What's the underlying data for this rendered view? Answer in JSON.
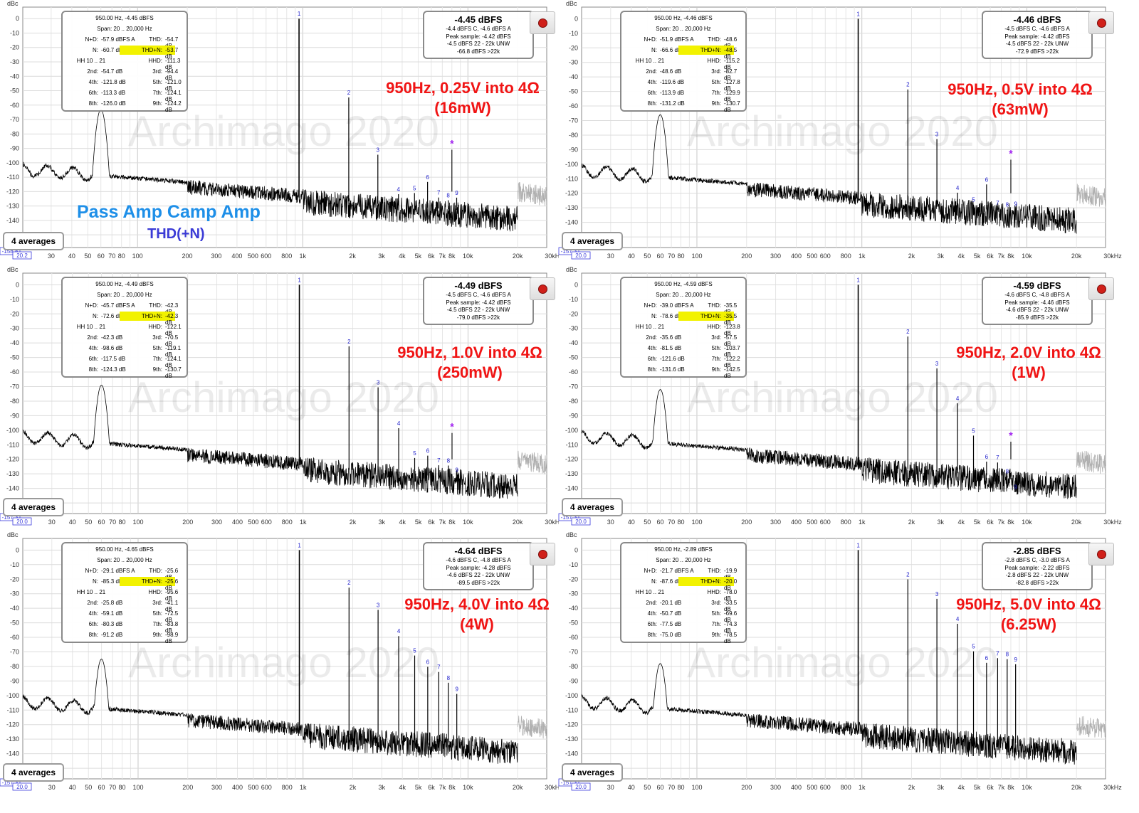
{
  "chart_data": [
    {
      "type": "line",
      "title": "950Hz, 0.25V into 4Ω",
      "subtitle": "(16mW)",
      "ylabel": "dBc",
      "ylim": [
        -158.8,
        8
      ],
      "xlim": [
        20.2,
        30000
      ],
      "x_scale": "log",
      "bottom_readout": "-158.8",
      "left_readout": "20.2",
      "averages_label": "4 averages",
      "watermark": "Archimago 2020",
      "info": {
        "header1": "950.00 Hz, -4.45 dBFS",
        "header2": "Span: 20 .. 20,000 Hz",
        "rows": [
          [
            [
              "N+D:",
              "-57.9 dBFS A"
            ],
            [
              "THD:",
              "-54.7 dB"
            ]
          ],
          [
            [
              "N:",
              "-60.7 dB"
            ],
            [
              "THD+N:",
              "-53.7 dB"
            ]
          ],
          [
            [
              "HH 10 .. 21",
              ""
            ],
            [
              "HHD:",
              "-111.3 dB"
            ]
          ],
          [
            [
              "2nd:",
              "-54.7 dB"
            ],
            [
              "3rd:",
              "-94.4 dB"
            ]
          ],
          [
            [
              "4th:",
              "-121.8 dB"
            ],
            [
              "5th:",
              "-121.0 dB"
            ]
          ],
          [
            [
              "6th:",
              "-113.3 dB"
            ],
            [
              "7th:",
              "-124.1 dB"
            ]
          ],
          [
            [
              "8th:",
              "-126.0 dB"
            ],
            [
              "9th:",
              "-124.2 dB"
            ]
          ]
        ]
      },
      "level": {
        "big": "-4.45 dBFS",
        "lines": [
          "-4.4 dBFS C, -4.6 dBFS A",
          "Peak sample: -4.42 dBFS",
          "-4.5 dBFS 22 - 22k UNW",
          "-66.8 dBFS >22k"
        ]
      },
      "harmonics": [
        {
          "n": "1",
          "x": 950,
          "y": 0
        },
        {
          "n": "2",
          "x": 1900,
          "y": -54.7
        },
        {
          "n": "3",
          "x": 2850,
          "y": -94.4
        },
        {
          "n": "4",
          "x": 3800,
          "y": -121.8
        },
        {
          "n": "5",
          "x": 4750,
          "y": -121.0
        },
        {
          "n": "6",
          "x": 5700,
          "y": -113.3
        },
        {
          "n": "7",
          "x": 6650,
          "y": -124.1
        },
        {
          "n": "8",
          "x": 7600,
          "y": -126.0
        },
        {
          "n": "9",
          "x": 8550,
          "y": -124.2
        }
      ],
      "star": {
        "x": 8000,
        "y": -86
      }
    },
    {
      "type": "line",
      "title": "950Hz, 0.5V into 4Ω",
      "subtitle": "(63mW)",
      "ylabel": "dBc",
      "ylim": [
        -157.3,
        8
      ],
      "xlim": [
        20.0,
        30000
      ],
      "x_scale": "log",
      "bottom_readout": "-157.3",
      "left_readout": "20.0",
      "averages_label": "4 averages",
      "watermark": "Archimago 2020",
      "info": {
        "header1": "950.00 Hz, -4.46 dBFS",
        "header2": "Span: 20 .. 20,000 Hz",
        "rows": [
          [
            [
              "N+D:",
              "-51.9 dBFS A"
            ],
            [
              "THD:",
              "-48.6 dB"
            ]
          ],
          [
            [
              "N:",
              "-66.6 dB"
            ],
            [
              "THD+N:",
              "-48.5 dB"
            ]
          ],
          [
            [
              "HH 10 .. 21",
              ""
            ],
            [
              "HHD:",
              "-115.2 dB"
            ]
          ],
          [
            [
              "2nd:",
              "-48.6 dB"
            ],
            [
              "3rd:",
              "-82.7 dB"
            ]
          ],
          [
            [
              "4th:",
              "-119.6 dB"
            ],
            [
              "5th:",
              "-127.8 dB"
            ]
          ],
          [
            [
              "6th:",
              "-113.9 dB"
            ],
            [
              "7th:",
              "-129.9 dB"
            ]
          ],
          [
            [
              "8th:",
              "-131.2 dB"
            ],
            [
              "9th:",
              "-130.7 dB"
            ]
          ]
        ]
      },
      "level": {
        "big": "-4.46 dBFS",
        "lines": [
          "-4.5 dBFS C, -4.6 dBFS A",
          "Peak sample: -4.42 dBFS",
          "-4.5 dBFS 22 - 22k UNW",
          "-72.9 dBFS >22k"
        ]
      },
      "harmonics": [
        {
          "n": "1",
          "x": 950,
          "y": 0
        },
        {
          "n": "2",
          "x": 1900,
          "y": -48.6
        },
        {
          "n": "3",
          "x": 2850,
          "y": -82.7
        },
        {
          "n": "4",
          "x": 3800,
          "y": -119.6
        },
        {
          "n": "5",
          "x": 4750,
          "y": -127.8
        },
        {
          "n": "6",
          "x": 5700,
          "y": -113.9
        },
        {
          "n": "7",
          "x": 6650,
          "y": -129.9
        },
        {
          "n": "8",
          "x": 7600,
          "y": -131.2
        },
        {
          "n": "9",
          "x": 8550,
          "y": -130.7
        }
      ],
      "star": {
        "x": 8000,
        "y": -92
      }
    },
    {
      "type": "line",
      "title": "950Hz, 1.0V into 4Ω",
      "subtitle": "(250mW)",
      "ylabel": "dBc",
      "ylim": [
        -157.3,
        8
      ],
      "xlim": [
        20.0,
        30000
      ],
      "x_scale": "log",
      "bottom_readout": "-157.3",
      "left_readout": "20.0",
      "averages_label": "4 averages",
      "watermark": "Archimago 2020",
      "info": {
        "header1": "950.00 Hz, -4.49 dBFS",
        "header2": "Span: 20 .. 20,000 Hz",
        "rows": [
          [
            [
              "N+D:",
              "-45.7 dBFS A"
            ],
            [
              "THD:",
              "-42.3 dB"
            ]
          ],
          [
            [
              "N:",
              "-72.6 dB"
            ],
            [
              "THD+N:",
              "-42.3 dB"
            ]
          ],
          [
            [
              "HH 10 .. 21",
              ""
            ],
            [
              "HHD:",
              "-122.1 dB"
            ]
          ],
          [
            [
              "2nd:",
              "-42.3 dB"
            ],
            [
              "3rd:",
              "-70.5 dB"
            ]
          ],
          [
            [
              "4th:",
              "-98.6 dB"
            ],
            [
              "5th:",
              "-119.1 dB"
            ]
          ],
          [
            [
              "6th:",
              "-117.5 dB"
            ],
            [
              "7th:",
              "-124.1 dB"
            ]
          ],
          [
            [
              "8th:",
              "-124.3 dB"
            ],
            [
              "9th:",
              "-130.7 dB"
            ]
          ]
        ]
      },
      "level": {
        "big": "-4.49 dBFS",
        "lines": [
          "-4.5 dBFS C, -4.6 dBFS A",
          "Peak sample: -4.42 dBFS",
          "-4.5 dBFS 22 - 22k UNW",
          "-79.0 dBFS >22k"
        ]
      },
      "harmonics": [
        {
          "n": "1",
          "x": 950,
          "y": 0
        },
        {
          "n": "2",
          "x": 1900,
          "y": -42.3
        },
        {
          "n": "3",
          "x": 2850,
          "y": -70.5
        },
        {
          "n": "4",
          "x": 3800,
          "y": -98.6
        },
        {
          "n": "5",
          "x": 4750,
          "y": -119.1
        },
        {
          "n": "6",
          "x": 5700,
          "y": -117.5
        },
        {
          "n": "7",
          "x": 6650,
          "y": -124.1
        },
        {
          "n": "8",
          "x": 7600,
          "y": -124.3
        },
        {
          "n": "9",
          "x": 8550,
          "y": -130.7
        }
      ],
      "star": {
        "x": 8000,
        "y": -97
      }
    },
    {
      "type": "line",
      "title": "950Hz, 2.0V into 4Ω",
      "subtitle": "(1W)",
      "ylabel": "dBc",
      "ylim": [
        -157.3,
        8
      ],
      "xlim": [
        20.0,
        30000
      ],
      "x_scale": "log",
      "bottom_readout": "-157.3",
      "left_readout": "20.0",
      "averages_label": "4 averages",
      "watermark": "Archimago 2020",
      "info": {
        "header1": "950.00 Hz, -4.59 dBFS",
        "header2": "Span: 20 .. 20,000 Hz",
        "rows": [
          [
            [
              "N+D:",
              "-39.0 dBFS A"
            ],
            [
              "THD:",
              "-35.5 dB"
            ]
          ],
          [
            [
              "N:",
              "-78.6 dB"
            ],
            [
              "THD+N:",
              "-35.5 dB"
            ]
          ],
          [
            [
              "HH 10 .. 21",
              ""
            ],
            [
              "HHD:",
              "-123.8 dB"
            ]
          ],
          [
            [
              "2nd:",
              "-35.6 dB"
            ],
            [
              "3rd:",
              "-57.5 dB"
            ]
          ],
          [
            [
              "4th:",
              "-81.5 dB"
            ],
            [
              "5th:",
              "-103.7 dB"
            ]
          ],
          [
            [
              "6th:",
              "-121.6 dB"
            ],
            [
              "7th:",
              "-122.2 dB"
            ]
          ],
          [
            [
              "8th:",
              "-131.6 dB"
            ],
            [
              "9th:",
              "-142.5 dB"
            ]
          ]
        ]
      },
      "level": {
        "big": "-4.59 dBFS",
        "lines": [
          "-4.6 dBFS C, -4.8 dBFS A",
          "Peak sample: -4.46 dBFS",
          "-4.6 dBFS 22 - 22k UNW",
          "-85.9 dBFS >22k"
        ]
      },
      "harmonics": [
        {
          "n": "1",
          "x": 950,
          "y": 0
        },
        {
          "n": "2",
          "x": 1900,
          "y": -35.6
        },
        {
          "n": "3",
          "x": 2850,
          "y": -57.5
        },
        {
          "n": "4",
          "x": 3800,
          "y": -81.5
        },
        {
          "n": "5",
          "x": 4750,
          "y": -103.7
        },
        {
          "n": "6",
          "x": 5700,
          "y": -121.6
        },
        {
          "n": "7",
          "x": 6650,
          "y": -122.2
        },
        {
          "n": "8",
          "x": 7600,
          "y": -131.6
        },
        {
          "n": "9",
          "x": 8550,
          "y": -142.5
        }
      ],
      "star": {
        "x": 8000,
        "y": -103
      }
    },
    {
      "type": "line",
      "title": "950Hz, 4.0V into 4Ω",
      "subtitle": "(4W)",
      "ylabel": "dBc",
      "ylim": [
        -157.3,
        8
      ],
      "xlim": [
        20.0,
        30000
      ],
      "x_scale": "log",
      "bottom_readout": "-157.3",
      "left_readout": "20.0",
      "averages_label": "4 averages",
      "watermark": "Archimago 2020",
      "info": {
        "header1": "950.00 Hz, -4.65 dBFS",
        "header2": "Span: 20 .. 20,000 Hz",
        "rows": [
          [
            [
              "N+D:",
              "-29.1 dBFS A"
            ],
            [
              "THD:",
              "-25.6 dB"
            ]
          ],
          [
            [
              "N:",
              "-85.3 dB"
            ],
            [
              "THD+N:",
              "-25.6 dB"
            ]
          ],
          [
            [
              "HH 10 .. 21",
              ""
            ],
            [
              "HHD:",
              "-95.6 dB"
            ]
          ],
          [
            [
              "2nd:",
              "-25.8 dB"
            ],
            [
              "3rd:",
              "-41.1 dB"
            ]
          ],
          [
            [
              "4th:",
              "-59.1 dB"
            ],
            [
              "5th:",
              "-72.5 dB"
            ]
          ],
          [
            [
              "6th:",
              "-80.3 dB"
            ],
            [
              "7th:",
              "-83.8 dB"
            ]
          ],
          [
            [
              "8th:",
              "-91.2 dB"
            ],
            [
              "9th:",
              "-98.9 dB"
            ]
          ]
        ]
      },
      "level": {
        "big": "-4.64 dBFS",
        "lines": [
          "-4.6 dBFS C, -4.8 dBFS A",
          "Peak sample: -4.28 dBFS",
          "-4.6 dBFS 22 - 22k UNW",
          "-89.5 dBFS >22k"
        ]
      },
      "harmonics": [
        {
          "n": "1",
          "x": 950,
          "y": 0
        },
        {
          "n": "2",
          "x": 1900,
          "y": -25.8
        },
        {
          "n": "3",
          "x": 2850,
          "y": -41.1
        },
        {
          "n": "4",
          "x": 3800,
          "y": -59.1
        },
        {
          "n": "5",
          "x": 4750,
          "y": -72.5
        },
        {
          "n": "6",
          "x": 5700,
          "y": -80.3
        },
        {
          "n": "7",
          "x": 6650,
          "y": -83.8
        },
        {
          "n": "8",
          "x": 7600,
          "y": -91.2
        },
        {
          "n": "9",
          "x": 8550,
          "y": -98.9
        }
      ],
      "star": null
    },
    {
      "type": "line",
      "title": "950Hz, 5.0V into 4Ω",
      "subtitle": "(6.25W)",
      "ylabel": "dBc",
      "ylim": [
        -157.3,
        8
      ],
      "xlim": [
        20.0,
        30000
      ],
      "x_scale": "log",
      "bottom_readout": "-157.3",
      "left_readout": "20.0",
      "averages_label": "4 averages",
      "watermark": "Archimago 2020",
      "info": {
        "header1": "950.00 Hz, -2.89 dBFS",
        "header2": "Span: 20 .. 20,000 Hz",
        "rows": [
          [
            [
              "N+D:",
              "-21.7 dBFS A"
            ],
            [
              "THD:",
              "-19.9 dB"
            ]
          ],
          [
            [
              "N:",
              "-87.6 dB"
            ],
            [
              "THD+N:",
              "-20.0 dB"
            ]
          ],
          [
            [
              "HH 10 .. 21",
              ""
            ],
            [
              "HHD:",
              "-78.0 dB"
            ]
          ],
          [
            [
              "2nd:",
              "-20.1 dB"
            ],
            [
              "3rd:",
              "-33.5 dB"
            ]
          ],
          [
            [
              "4th:",
              "-50.7 dB"
            ],
            [
              "5th:",
              "-69.6 dB"
            ]
          ],
          [
            [
              "6th:",
              "-77.5 dB"
            ],
            [
              "7th:",
              "-74.3 dB"
            ]
          ],
          [
            [
              "8th:",
              "-75.0 dB"
            ],
            [
              "9th:",
              "-78.5 dB"
            ]
          ]
        ]
      },
      "level": {
        "big": "-2.85 dBFS",
        "lines": [
          "-2.8 dBFS C, -3.0 dBFS A",
          "Peak sample: -2.22 dBFS",
          "-2.8 dBFS 22 - 22k UNW",
          "-82.8 dBFS >22k"
        ]
      },
      "harmonics": [
        {
          "n": "1",
          "x": 950,
          "y": 0
        },
        {
          "n": "2",
          "x": 1900,
          "y": -20.1
        },
        {
          "n": "3",
          "x": 2850,
          "y": -33.5
        },
        {
          "n": "4",
          "x": 3800,
          "y": -50.7
        },
        {
          "n": "5",
          "x": 4750,
          "y": -69.6
        },
        {
          "n": "6",
          "x": 5700,
          "y": -77.5
        },
        {
          "n": "7",
          "x": 6650,
          "y": -74.3
        },
        {
          "n": "8",
          "x": 7600,
          "y": -75.0
        },
        {
          "n": "9",
          "x": 8550,
          "y": -78.5
        }
      ],
      "star": null
    }
  ],
  "y_ticks": [
    0,
    -10,
    -20,
    -30,
    -40,
    -50,
    -60,
    -70,
    -80,
    -90,
    -100,
    -110,
    -120,
    -130,
    -140,
    -150
  ],
  "x_ticks": [
    {
      "v": 30,
      "l": "30"
    },
    {
      "v": 40,
      "l": "40"
    },
    {
      "v": 50,
      "l": "50"
    },
    {
      "v": 60,
      "l": "60"
    },
    {
      "v": 70,
      "l": "70"
    },
    {
      "v": 80,
      "l": "80"
    },
    {
      "v": 100,
      "l": "100"
    },
    {
      "v": 200,
      "l": "200"
    },
    {
      "v": 300,
      "l": "300"
    },
    {
      "v": 400,
      "l": "400"
    },
    {
      "v": 500,
      "l": "500"
    },
    {
      "v": 600,
      "l": "600"
    },
    {
      "v": 800,
      "l": "800"
    },
    {
      "v": 1000,
      "l": "1k"
    },
    {
      "v": 2000,
      "l": "2k"
    },
    {
      "v": 3000,
      "l": "3k"
    },
    {
      "v": 4000,
      "l": "4k"
    },
    {
      "v": 5000,
      "l": "5k"
    },
    {
      "v": 6000,
      "l": "6k"
    },
    {
      "v": 7000,
      "l": "7k"
    },
    {
      "v": 8000,
      "l": "8k"
    },
    {
      "v": 10000,
      "l": "10k"
    },
    {
      "v": 20000,
      "l": "20k"
    },
    {
      "v": 30000,
      "l": "30kHz"
    }
  ],
  "amp_name": "Pass Amp Camp Amp",
  "amp_subtitle": "THD(+N)",
  "colors": {
    "trace": "#000000",
    "trace_above_20k": "#b0b0b0",
    "condition_text": "#f01414",
    "harmonic_label": "#2222cc",
    "star": "#a020f0",
    "highlight": "#f2f200",
    "amp_name": "#1e8fe8",
    "amp_subtitle": "#3b3bd6"
  }
}
